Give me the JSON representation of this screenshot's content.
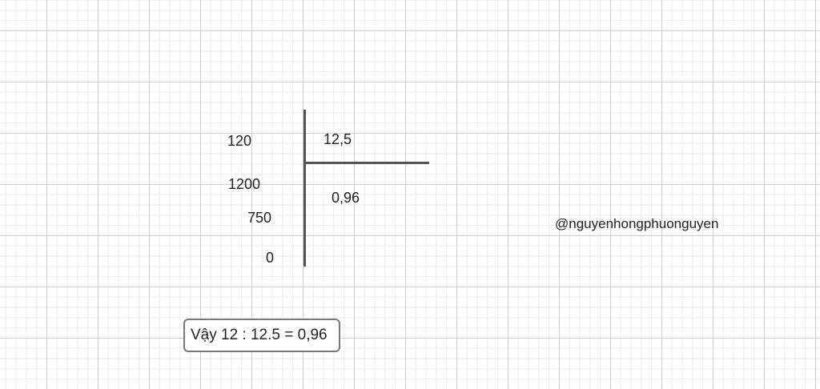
{
  "division": {
    "dividend_steps": [
      "120",
      "1200",
      "750",
      "0"
    ],
    "divisor": "12,5",
    "quotient": "0,96"
  },
  "conclusion": "Vậy 12 : 12.5 = 0,96",
  "watermark": "@nguyenhongphuonguyen"
}
